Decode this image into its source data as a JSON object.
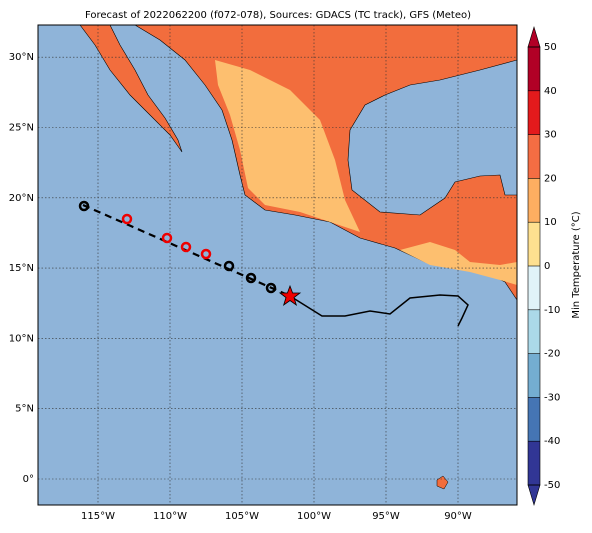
{
  "title": "Forecast of 2022062200 (f072-078), Sources: GDACS (TC track), GFS (Meteo)",
  "lat_ticks": [
    {
      "value": 30,
      "label": "30°N"
    },
    {
      "value": 25,
      "label": "25°N"
    },
    {
      "value": 20,
      "label": "20°N"
    },
    {
      "value": 15,
      "label": "15°N"
    },
    {
      "value": 10,
      "label": "10°N"
    },
    {
      "value": 5,
      "label": "5°N"
    },
    {
      "value": 0,
      "label": "0°"
    }
  ],
  "lon_ticks": [
    {
      "value": -115,
      "label": "115°W"
    },
    {
      "value": -110,
      "label": "110°W"
    },
    {
      "value": -105,
      "label": "105°W"
    },
    {
      "value": -100,
      "label": "100°W"
    },
    {
      "value": -95,
      "label": "95°W"
    },
    {
      "value": -90,
      "label": "90°W"
    }
  ],
  "colorbar": {
    "label": "Min Temperature (°C)",
    "ticks": [
      50,
      40,
      30,
      20,
      10,
      0,
      -10,
      -20,
      -30,
      -40,
      -50
    ],
    "colors": [
      "#b10026",
      "#e31a1c",
      "#f46d43",
      "#fdae61",
      "#fee090",
      "#e0f3f8",
      "#abd9e9",
      "#74add1",
      "#4575b4",
      "#313695"
    ]
  }
}
